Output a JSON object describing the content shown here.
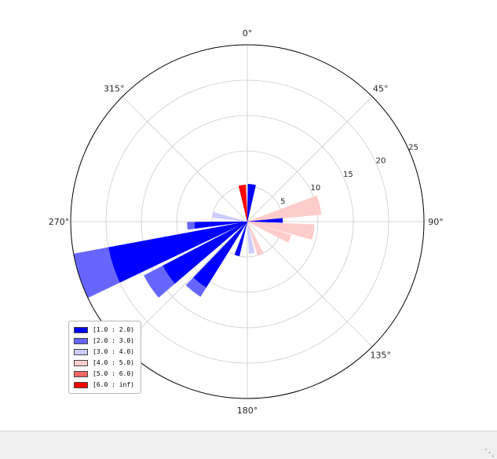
{
  "window": {
    "background": "#ffffff",
    "statusbar_background": "#f0f0f0",
    "resize_grip_glyph": "⋱"
  },
  "chart_data": {
    "type": "polar_bar",
    "kind": "windrose",
    "title": "",
    "r_max": 25,
    "r_ticks": [
      5,
      10,
      15,
      20,
      25
    ],
    "r_tick_labels": [
      "5",
      "10",
      "15",
      "20",
      "25"
    ],
    "r_label_angle_deg": 67.5,
    "angle_ticks": [
      {
        "angle_deg": 0,
        "label": "0°"
      },
      {
        "angle_deg": 45,
        "label": "45°"
      },
      {
        "angle_deg": 90,
        "label": "90°"
      },
      {
        "angle_deg": 135,
        "label": "135°"
      },
      {
        "angle_deg": 180,
        "label": "180°"
      },
      {
        "angle_deg": 270,
        "label": "270°"
      },
      {
        "angle_deg": 315,
        "label": "315°"
      }
    ],
    "grid": {
      "color": "#cccccc",
      "spoke_step_deg": 45,
      "outline_color": "#000000"
    },
    "speed_bins": [
      {
        "label": "[1.0 : 2.0)",
        "color": "#0000ff"
      },
      {
        "label": "[2.0 : 3.0)",
        "color": "#6666ff"
      },
      {
        "label": "[3.0 : 4.0)",
        "color": "#ccccff"
      },
      {
        "label": "[4.0 : 5.0)",
        "color": "#ffcccc"
      },
      {
        "label": "[5.0 : 6.0)",
        "color": "#ff6666"
      },
      {
        "label": "[6.0 : inf)",
        "color": "#ff0000"
      }
    ],
    "bars": [
      {
        "direction_deg": 352,
        "width_deg": 11,
        "segments": [
          {
            "bin": 5,
            "r0": 0,
            "r1": 5.2
          }
        ]
      },
      {
        "direction_deg": 7,
        "width_deg": 12,
        "segments": [
          {
            "bin": 0,
            "r0": 0,
            "r1": 5.3
          }
        ]
      },
      {
        "direction_deg": 77,
        "width_deg": 15,
        "segments": [
          {
            "bin": 3,
            "r0": 0,
            "r1": 10.5
          }
        ]
      },
      {
        "direction_deg": 88,
        "width_deg": 7,
        "segments": [
          {
            "bin": 0,
            "r0": 0,
            "r1": 5.0
          }
        ]
      },
      {
        "direction_deg": 99,
        "width_deg": 13,
        "segments": [
          {
            "bin": 3,
            "r0": 0,
            "r1": 9.5
          }
        ]
      },
      {
        "direction_deg": 112,
        "width_deg": 10,
        "segments": [
          {
            "bin": 3,
            "r0": 0,
            "r1": 6.5
          }
        ]
      },
      {
        "direction_deg": 158,
        "width_deg": 10,
        "segments": [
          {
            "bin": 3,
            "r0": 0,
            "r1": 5.0
          }
        ]
      },
      {
        "direction_deg": 172,
        "width_deg": 10,
        "segments": [
          {
            "bin": 2,
            "r0": 0,
            "r1": 4.5
          }
        ]
      },
      {
        "direction_deg": 197,
        "width_deg": 8,
        "segments": [
          {
            "bin": 0,
            "r0": 0,
            "r1": 5.0
          }
        ]
      },
      {
        "direction_deg": 218,
        "width_deg": 12,
        "segments": [
          {
            "bin": 0,
            "r0": 0,
            "r1": 11.0
          },
          {
            "bin": 1,
            "r0": 11.0,
            "r1": 12.5
          }
        ]
      },
      {
        "direction_deg": 236,
        "width_deg": 13,
        "segments": [
          {
            "bin": 0,
            "r0": 0,
            "r1": 13.5
          },
          {
            "bin": 1,
            "r0": 13.5,
            "r1": 16.5
          }
        ]
      },
      {
        "direction_deg": 252,
        "width_deg": 15,
        "segments": [
          {
            "bin": 0,
            "r0": 0,
            "r1": 20.0
          },
          {
            "bin": 1,
            "r0": 20.0,
            "r1": 25.0
          }
        ]
      },
      {
        "direction_deg": 266,
        "width_deg": 7,
        "segments": [
          {
            "bin": 0,
            "r0": 0,
            "r1": 7.5
          },
          {
            "bin": 1,
            "r0": 7.5,
            "r1": 8.5
          }
        ]
      },
      {
        "direction_deg": 281,
        "width_deg": 9,
        "segments": [
          {
            "bin": 2,
            "r0": 0,
            "r1": 5.0
          }
        ]
      }
    ],
    "legend_position": "lower left"
  }
}
